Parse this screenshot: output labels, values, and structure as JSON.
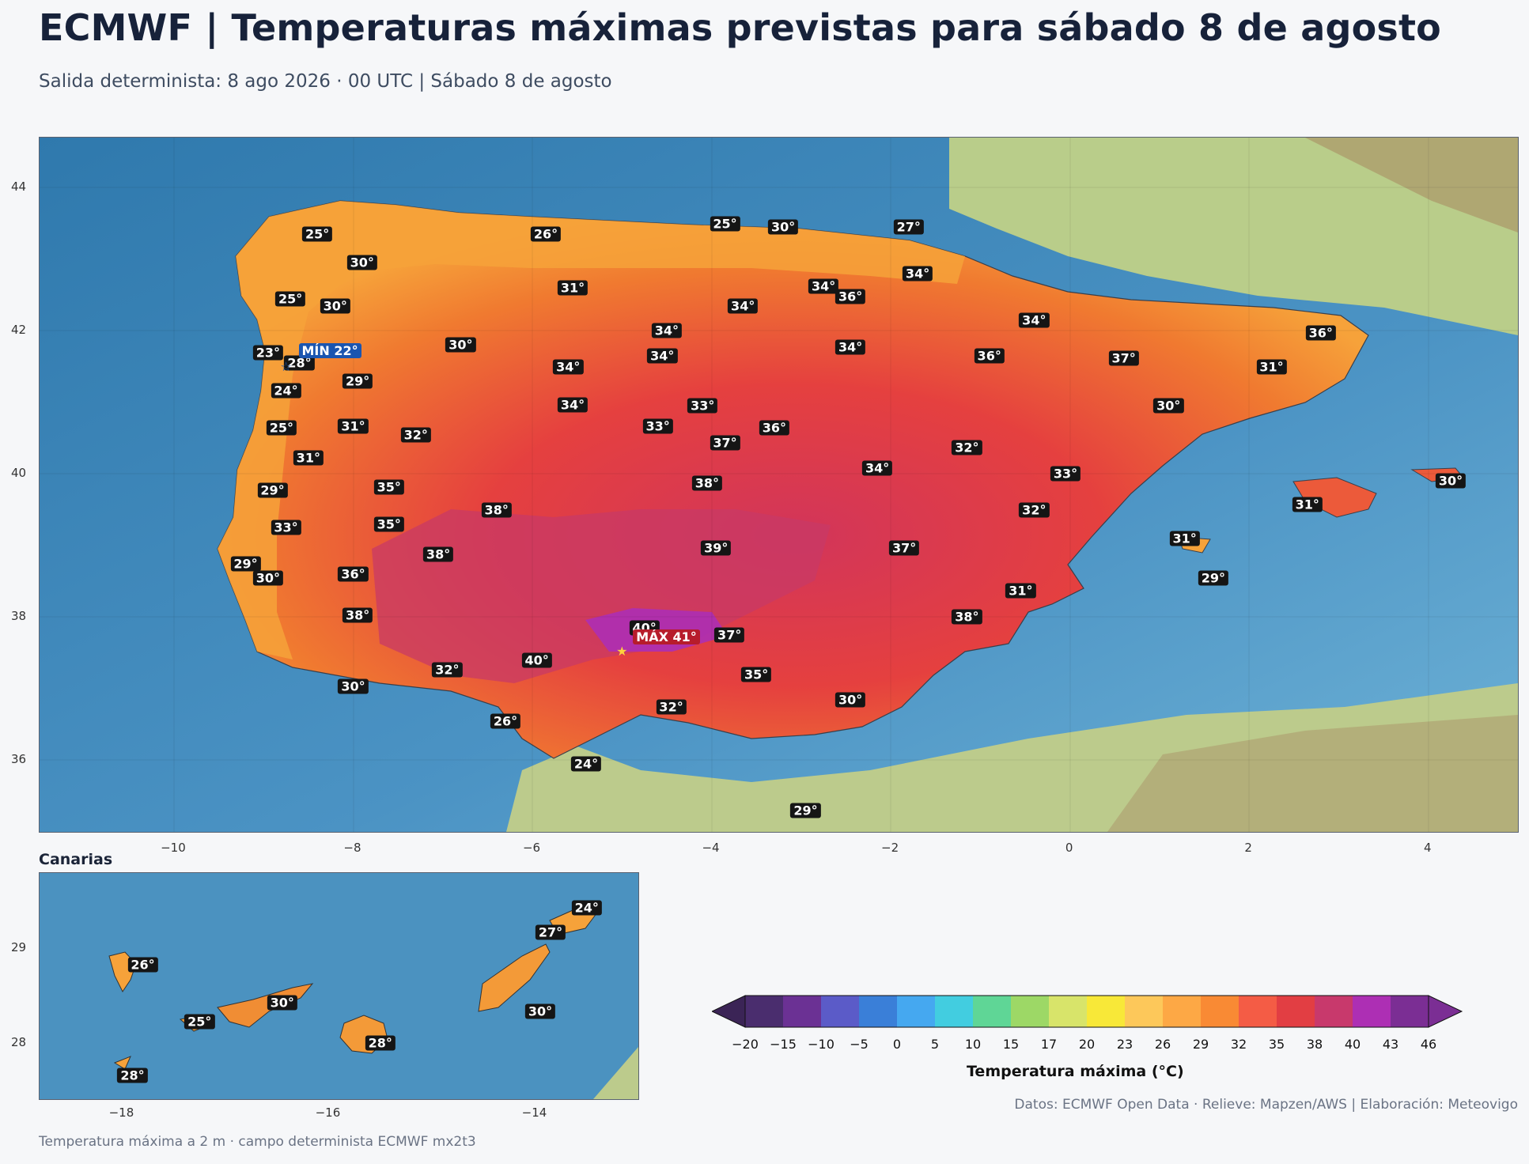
{
  "header": {
    "title": "ECMWF | Temperaturas máximas previstas para sábado 8 de agosto",
    "subtitle": "Salida determinista: 8 ago 2026 · 00 UTC  |  Sábado 8 de agosto"
  },
  "main_map": {
    "lon_range": [
      -11.5,
      5.0
    ],
    "lat_range": [
      35.0,
      44.7
    ],
    "x_ticks": [
      "−10",
      "−8",
      "−6",
      "−4",
      "−2",
      "0",
      "2",
      "4"
    ],
    "y_ticks": [
      "44",
      "42",
      "40",
      "38",
      "36"
    ],
    "grid": true,
    "labels": [
      {
        "text": "25°",
        "lon": -8.4,
        "lat": 43.35
      },
      {
        "text": "26°",
        "lon": -5.85,
        "lat": 43.35
      },
      {
        "text": "25°",
        "lon": -3.85,
        "lat": 43.5
      },
      {
        "text": "30°",
        "lon": -3.2,
        "lat": 43.45
      },
      {
        "text": "27°",
        "lon": -1.8,
        "lat": 43.45
      },
      {
        "text": "30°",
        "lon": -7.9,
        "lat": 42.95
      },
      {
        "text": "31°",
        "lon": -5.55,
        "lat": 42.6
      },
      {
        "text": "34°",
        "lon": -1.7,
        "lat": 42.8
      },
      {
        "text": "34°",
        "lon": -2.75,
        "lat": 42.62
      },
      {
        "text": "36°",
        "lon": -2.45,
        "lat": 42.48
      },
      {
        "text": "25°",
        "lon": -8.7,
        "lat": 42.45
      },
      {
        "text": "30°",
        "lon": -8.2,
        "lat": 42.35
      },
      {
        "text": "34°",
        "lon": -3.65,
        "lat": 42.35
      },
      {
        "text": "34°",
        "lon": -0.4,
        "lat": 42.15
      },
      {
        "text": "34°",
        "lon": -4.5,
        "lat": 42.0
      },
      {
        "text": "36°",
        "lon": 2.8,
        "lat": 41.97
      },
      {
        "text": "30°",
        "lon": -6.8,
        "lat": 41.8
      },
      {
        "text": "34°",
        "lon": -2.45,
        "lat": 41.77
      },
      {
        "text": "23°",
        "lon": -8.95,
        "lat": 41.7
      },
      {
        "text": "28°",
        "lon": -8.6,
        "lat": 41.55
      },
      {
        "text": "34°",
        "lon": -4.55,
        "lat": 41.65
      },
      {
        "text": "34°",
        "lon": -5.6,
        "lat": 41.5
      },
      {
        "text": "36°",
        "lon": -0.9,
        "lat": 41.65
      },
      {
        "text": "37°",
        "lon": 0.6,
        "lat": 41.62
      },
      {
        "text": "31°",
        "lon": 2.25,
        "lat": 41.5
      },
      {
        "text": "29°",
        "lon": -7.95,
        "lat": 41.3
      },
      {
        "text": "24°",
        "lon": -8.75,
        "lat": 41.17
      },
      {
        "text": "34°",
        "lon": -5.55,
        "lat": 40.97
      },
      {
        "text": "33°",
        "lon": -4.1,
        "lat": 40.95
      },
      {
        "text": "30°",
        "lon": 1.1,
        "lat": 40.95
      },
      {
        "text": "25°",
        "lon": -8.8,
        "lat": 40.65
      },
      {
        "text": "31°",
        "lon": -8.0,
        "lat": 40.67
      },
      {
        "text": "33°",
        "lon": -4.6,
        "lat": 40.67
      },
      {
        "text": "36°",
        "lon": -3.3,
        "lat": 40.65
      },
      {
        "text": "32°",
        "lon": -7.3,
        "lat": 40.55
      },
      {
        "text": "37°",
        "lon": -3.85,
        "lat": 40.44
      },
      {
        "text": "32°",
        "lon": -1.15,
        "lat": 40.37
      },
      {
        "text": "31°",
        "lon": -8.5,
        "lat": 40.23
      },
      {
        "text": "34°",
        "lon": -2.15,
        "lat": 40.08
      },
      {
        "text": "33°",
        "lon": -0.05,
        "lat": 40.0
      },
      {
        "text": "30°",
        "lon": 4.25,
        "lat": 39.9
      },
      {
        "text": "38°",
        "lon": -4.05,
        "lat": 39.87
      },
      {
        "text": "35°",
        "lon": -7.6,
        "lat": 39.82
      },
      {
        "text": "29°",
        "lon": -8.9,
        "lat": 39.77
      },
      {
        "text": "38°",
        "lon": -6.4,
        "lat": 39.5
      },
      {
        "text": "32°",
        "lon": -0.4,
        "lat": 39.5
      },
      {
        "text": "31°",
        "lon": 2.65,
        "lat": 39.57
      },
      {
        "text": "35°",
        "lon": -7.6,
        "lat": 39.3
      },
      {
        "text": "33°",
        "lon": -8.75,
        "lat": 39.25
      },
      {
        "text": "39°",
        "lon": -3.95,
        "lat": 38.97
      },
      {
        "text": "37°",
        "lon": -1.85,
        "lat": 38.97
      },
      {
        "text": "31°",
        "lon": 1.28,
        "lat": 39.1
      },
      {
        "text": "38°",
        "lon": -7.05,
        "lat": 38.88
      },
      {
        "text": "29°",
        "lon": -9.2,
        "lat": 38.75
      },
      {
        "text": "30°",
        "lon": -8.95,
        "lat": 38.55
      },
      {
        "text": "36°",
        "lon": -8.0,
        "lat": 38.6
      },
      {
        "text": "29°",
        "lon": 1.6,
        "lat": 38.55
      },
      {
        "text": "31°",
        "lon": -0.55,
        "lat": 38.37
      },
      {
        "text": "38°",
        "lon": -7.95,
        "lat": 38.03
      },
      {
        "text": "38°",
        "lon": -1.15,
        "lat": 38.0
      },
      {
        "text": "40°",
        "lon": -4.75,
        "lat": 37.85
      },
      {
        "text": "37°",
        "lon": -3.8,
        "lat": 37.75
      },
      {
        "text": "40°",
        "lon": -5.95,
        "lat": 37.4
      },
      {
        "text": "32°",
        "lon": -6.95,
        "lat": 37.27
      },
      {
        "text": "35°",
        "lon": -3.5,
        "lat": 37.2
      },
      {
        "text": "30°",
        "lon": -8.0,
        "lat": 37.03
      },
      {
        "text": "30°",
        "lon": -2.45,
        "lat": 36.85
      },
      {
        "text": "32°",
        "lon": -4.45,
        "lat": 36.75
      },
      {
        "text": "26°",
        "lon": -6.3,
        "lat": 36.55
      },
      {
        "text": "24°",
        "lon": -5.4,
        "lat": 35.95
      },
      {
        "text": "29°",
        "lon": -2.95,
        "lat": 35.3
      }
    ],
    "max": {
      "label": "MÁX 41°",
      "lon": -5.0,
      "lat": 37.52
    },
    "min": {
      "label": "MÍN 22°",
      "lon": -8.75,
      "lat": 41.5
    }
  },
  "canarias": {
    "title": "Canarias",
    "lon_range": [
      -18.8,
      -13.0
    ],
    "lat_range": [
      27.4,
      29.8
    ],
    "x_ticks": [
      "−18",
      "−16",
      "−14"
    ],
    "y_ticks": [
      "29",
      "28"
    ],
    "labels": [
      {
        "text": "24°",
        "lon": -13.5,
        "lat": 29.43
      },
      {
        "text": "27°",
        "lon": -13.85,
        "lat": 29.17
      },
      {
        "text": "26°",
        "lon": -17.8,
        "lat": 28.83
      },
      {
        "text": "30°",
        "lon": -16.45,
        "lat": 28.42
      },
      {
        "text": "25°",
        "lon": -17.25,
        "lat": 28.22
      },
      {
        "text": "30°",
        "lon": -13.95,
        "lat": 28.33
      },
      {
        "text": "28°",
        "lon": -15.5,
        "lat": 28.0
      },
      {
        "text": "28°",
        "lon": -17.9,
        "lat": 27.65
      }
    ]
  },
  "colorbar": {
    "label": "Temperatura máxima (°C)",
    "ticks": [
      "−20",
      "−15",
      "−10",
      "−5",
      "0",
      "5",
      "10",
      "15",
      "17",
      "20",
      "23",
      "26",
      "29",
      "32",
      "35",
      "38",
      "40",
      "43",
      "46"
    ],
    "colors": [
      "#4a2d6e",
      "#6b3194",
      "#5b5bc8",
      "#3a7fd8",
      "#45a8f0",
      "#42cde0",
      "#5fd696",
      "#9dd866",
      "#d8e46a",
      "#f8e838",
      "#fdc85a",
      "#fda845",
      "#f98a34",
      "#f45c45",
      "#e23e43",
      "#c8396c",
      "#ad2fb4",
      "#7b2e94"
    ],
    "under_color": "#3b2456",
    "over_color": "#7b2e94"
  },
  "footnote": "Temperatura máxima a 2 m · campo determinista ECMWF mx2t3",
  "credits": "Datos: ECMWF Open Data · Relieve: Mapzen/AWS  |  Elaboración: Meteovigo"
}
